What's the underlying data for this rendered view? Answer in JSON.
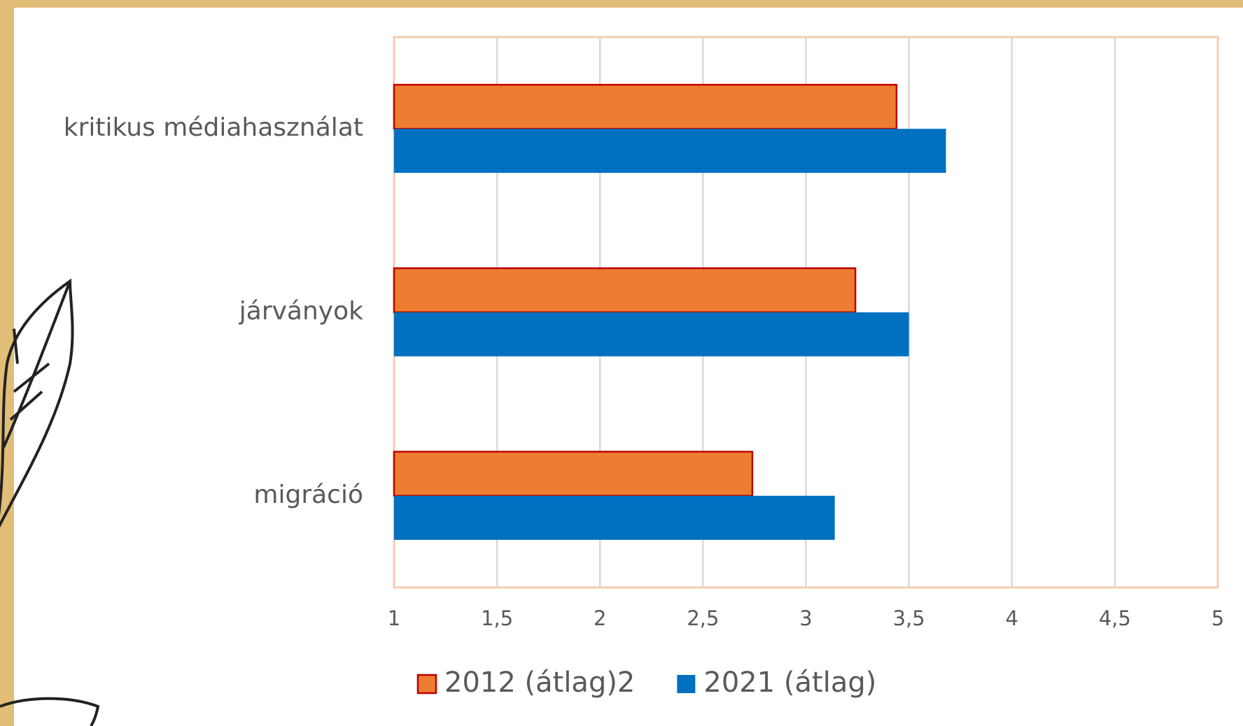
{
  "chart_data": {
    "type": "bar",
    "orientation": "horizontal",
    "categories": [
      "kritikus médiahasználat",
      "járványok",
      "migráció"
    ],
    "series": [
      {
        "name": "2012 (átlag)2",
        "color": "#ed7d31",
        "edge_color": "#c00000",
        "values": [
          3.44,
          3.24,
          2.74
        ]
      },
      {
        "name": "2021 (átlag)",
        "color": "#0070c0",
        "values": [
          3.68,
          3.5,
          3.14
        ]
      }
    ],
    "xlim": [
      1,
      5
    ],
    "xticks": [
      1,
      {
        "value": 1.5,
        "label": "1,5"
      },
      2,
      {
        "value": 2.5,
        "label": "2,5"
      },
      3,
      {
        "value": 3.5,
        "label": "3,5"
      },
      4,
      {
        "value": 4.5,
        "label": "4,5"
      },
      5
    ],
    "grid": true,
    "legend": "bottom"
  }
}
